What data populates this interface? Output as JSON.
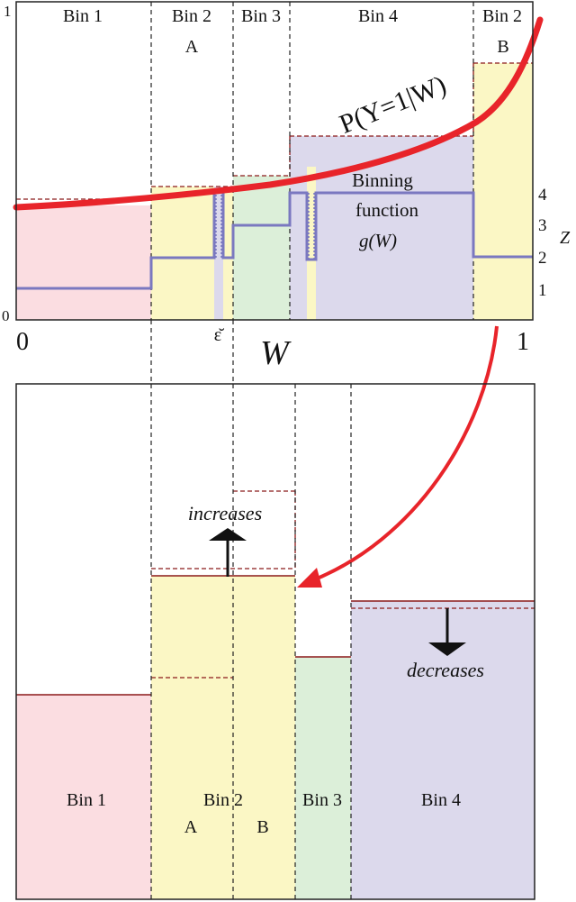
{
  "top_panel": {
    "bin_labels": [
      "Bin 1",
      "Bin 2",
      "Bin 3",
      "Bin 4",
      "Bin 2"
    ],
    "sub_label_a": "A",
    "sub_label_b": "B",
    "curve_label": "P(Y=1|W)",
    "binning_label_line1": "Binning",
    "binning_label_line2": "function",
    "binning_label_line3": "g(W)",
    "y_tick_top": "1",
    "y_tick_bottom": "0",
    "x_tick_left": "0",
    "x_tick_right": "1",
    "x_axis_label": "W",
    "epsilon_label": "ε̆",
    "z_ticks": [
      "4",
      "3",
      "2",
      "1"
    ],
    "z_axis_label": "Z"
  },
  "bottom_panel": {
    "bin_labels": [
      "Bin 1",
      "Bin 2",
      "Bin 3",
      "Bin 4"
    ],
    "sub_label_a": "A",
    "sub_label_b": "B",
    "increases_label": "increases",
    "decreases_label": "decreases"
  },
  "colors": {
    "bin1": "#fbdde1",
    "bin2": "#fbf7c5",
    "bin3": "#dcefd9",
    "bin4": "#dcd9ec",
    "curve": "#e8242a",
    "binning_function": "#7a78c0",
    "dashed_line": "#8b1a1a",
    "label_red": "#d42020"
  }
}
